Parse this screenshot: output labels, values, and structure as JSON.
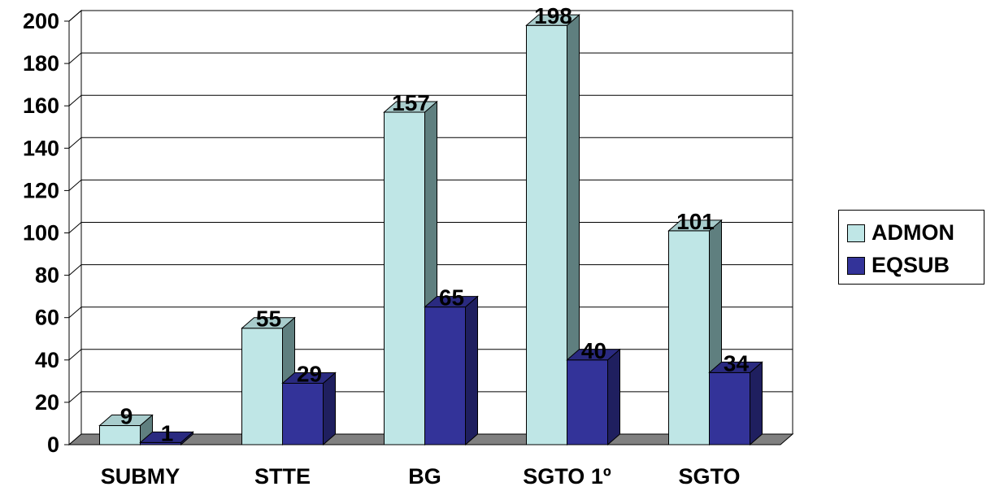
{
  "chart_data": {
    "type": "bar",
    "categories": [
      "SUBMY",
      "STTE",
      "BG",
      "SGTO 1º",
      "SGTO"
    ],
    "series": [
      {
        "name": "ADMON",
        "values": [
          9,
          55,
          157,
          198,
          101
        ],
        "color": "#bfe6e6"
      },
      {
        "name": "EQSUB",
        "values": [
          1,
          29,
          65,
          40,
          34
        ],
        "color": "#333399"
      }
    ],
    "ylim": [
      0,
      200
    ],
    "yticks": [
      0,
      20,
      40,
      60,
      80,
      100,
      120,
      140,
      160,
      180,
      200
    ],
    "grid": true,
    "legend_position": "right",
    "three_d": true,
    "data_labels": true,
    "title": "",
    "xlabel": "",
    "ylabel": ""
  }
}
